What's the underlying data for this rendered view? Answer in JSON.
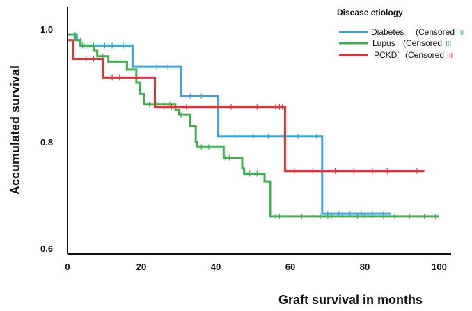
{
  "chart_data": {
    "type": "line",
    "title": "",
    "xlabel": "Graft survival in months",
    "ylabel": "Accumulated survival",
    "xlim": [
      0,
      100
    ],
    "ylim": [
      0.6,
      1.0
    ],
    "x_ticks": [
      "0",
      "20",
      "40",
      "60",
      "80",
      "100"
    ],
    "y_ticks": [
      "0.6",
      "0.8",
      "1.0"
    ],
    "grid": false,
    "legend": {
      "title": "Disease etiology",
      "position": "top-right",
      "items": [
        {
          "name": "Diabetes",
          "censor_text": "(Censored",
          "censor_marks": "III",
          "color": "#3da4d8"
        },
        {
          "name": "Lupus",
          "censor_text": "(Censored",
          "censor_marks": "III",
          "color": "#3db04d"
        },
        {
          "name": "PCKD`",
          "censor_text": "(Censored",
          "censor_marks": "III",
          "color": "#e03434"
        }
      ]
    },
    "series": [
      {
        "name": "Diabetes",
        "color": "#3da4d8",
        "steps": [
          [
            0,
            1.0
          ],
          [
            2.5,
            0.99
          ],
          [
            3.5,
            0.98
          ],
          [
            17.5,
            0.94
          ],
          [
            30.5,
            0.885
          ],
          [
            40.5,
            0.81
          ],
          [
            68.5,
            0.665
          ],
          [
            87,
            0.665
          ]
        ],
        "censored": [
          [
            2,
            1.0
          ],
          [
            3.5,
            0.99
          ],
          [
            4.5,
            0.98
          ],
          [
            7,
            0.98
          ],
          [
            10,
            0.98
          ],
          [
            12,
            0.98
          ],
          [
            15,
            0.98
          ],
          [
            24,
            0.94
          ],
          [
            27,
            0.94
          ],
          [
            33,
            0.885
          ],
          [
            36,
            0.885
          ],
          [
            45,
            0.81
          ],
          [
            50,
            0.81
          ],
          [
            54,
            0.81
          ],
          [
            58,
            0.81
          ],
          [
            62,
            0.81
          ],
          [
            67,
            0.81
          ],
          [
            70,
            0.665
          ],
          [
            73,
            0.665
          ],
          [
            76,
            0.665
          ],
          [
            79,
            0.665
          ],
          [
            82,
            0.665
          ],
          [
            85,
            0.665
          ]
        ]
      },
      {
        "name": "Lupus",
        "color": "#3db04d",
        "steps": [
          [
            0,
            1.0
          ],
          [
            2,
            0.99
          ],
          [
            3.5,
            0.98
          ],
          [
            7,
            0.97
          ],
          [
            8,
            0.96
          ],
          [
            11,
            0.95
          ],
          [
            16,
            0.935
          ],
          [
            18.5,
            0.91
          ],
          [
            19.5,
            0.89
          ],
          [
            20.5,
            0.87
          ],
          [
            29,
            0.86
          ],
          [
            30,
            0.85
          ],
          [
            33,
            0.83
          ],
          [
            34.5,
            0.8
          ],
          [
            34.8,
            0.79
          ],
          [
            42,
            0.77
          ],
          [
            47,
            0.75
          ],
          [
            47.5,
            0.74
          ],
          [
            53,
            0.725
          ],
          [
            54.5,
            0.66
          ],
          [
            100,
            0.66
          ]
        ],
        "censored": [
          [
            4,
            0.98
          ],
          [
            5.5,
            0.98
          ],
          [
            9.5,
            0.96
          ],
          [
            13,
            0.95
          ],
          [
            22,
            0.87
          ],
          [
            24,
            0.87
          ],
          [
            26,
            0.87
          ],
          [
            27.5,
            0.87
          ],
          [
            30.5,
            0.85
          ],
          [
            36,
            0.79
          ],
          [
            38,
            0.79
          ],
          [
            42.5,
            0.77
          ],
          [
            43.5,
            0.77
          ],
          [
            48,
            0.74
          ],
          [
            49,
            0.74
          ],
          [
            51,
            0.74
          ],
          [
            56,
            0.66
          ],
          [
            57,
            0.66
          ],
          [
            63,
            0.66
          ],
          [
            66,
            0.66
          ],
          [
            68,
            0.66
          ],
          [
            70,
            0.66
          ],
          [
            71,
            0.66
          ],
          [
            74,
            0.66
          ],
          [
            78,
            0.66
          ],
          [
            80,
            0.66
          ],
          [
            82,
            0.66
          ],
          [
            85,
            0.66
          ],
          [
            88,
            0.66
          ],
          [
            92,
            0.66
          ],
          [
            96,
            0.66
          ],
          [
            99,
            0.66
          ]
        ]
      },
      {
        "name": "PCKD`",
        "color": "#e03434",
        "steps": [
          [
            0,
            0.99
          ],
          [
            1.5,
            0.955
          ],
          [
            9.5,
            0.92
          ],
          [
            23.5,
            0.865
          ],
          [
            58.5,
            0.745
          ],
          [
            96,
            0.745
          ]
        ],
        "censored": [
          [
            5,
            0.955
          ],
          [
            7,
            0.955
          ],
          [
            12,
            0.92
          ],
          [
            14,
            0.92
          ],
          [
            26,
            0.865
          ],
          [
            28,
            0.865
          ],
          [
            32,
            0.865
          ],
          [
            44,
            0.865
          ],
          [
            51,
            0.865
          ],
          [
            56,
            0.865
          ],
          [
            57,
            0.865
          ],
          [
            57.8,
            0.865
          ],
          [
            61,
            0.745
          ],
          [
            66,
            0.745
          ],
          [
            72,
            0.745
          ],
          [
            77,
            0.745
          ],
          [
            82,
            0.745
          ],
          [
            86,
            0.745
          ],
          [
            94,
            0.745
          ]
        ]
      }
    ]
  }
}
